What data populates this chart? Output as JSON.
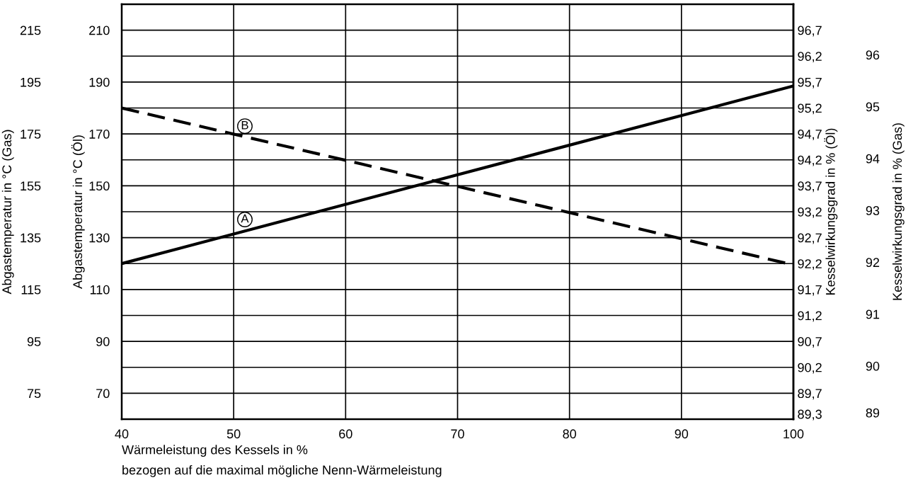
{
  "chart_data": {
    "type": "line",
    "xlabel": "Wärmeleistung des Kessels in %\nbezogen auf die maximal mögliche Nenn-Wärmeleistung",
    "ylabel": "Abgastemperatur in °C (Öl)",
    "y3label": "Abgastemperatur in °C (Gas)",
    "y2label": "Kesselwirkungsgrad in % (Öl)",
    "x": [
      40,
      100
    ],
    "series": [
      {
        "color": "#000000",
        "line_style": "solid",
        "values": [
          120,
          188.5
        ]
      },
      {
        "color": "#000000",
        "line_style": "dashed",
        "values": [
          180,
          119.5
        ]
      }
    ],
    "annotations": [
      {
        "text": "A",
        "x": 51,
        "y": 137
      },
      {
        "text": "B",
        "x": 51,
        "y": 173
      },
      "89",
      "90",
      "91",
      "92",
      "93",
      "94",
      "95",
      "96",
      "Kesselwirkungsgrad in % (Gas)"
    ],
    "xlim": [
      40,
      100
    ],
    "xticks": [
      40,
      50,
      60,
      70,
      80,
      90,
      100
    ],
    "ylim": [
      60,
      220
    ],
    "yticks": [
      70,
      90,
      110,
      130,
      150,
      170,
      190,
      210
    ],
    "y3lim": [
      65,
      225
    ],
    "y3ticks": [
      75,
      95,
      115,
      135,
      155,
      175,
      195,
      215
    ],
    "y2lim": [
      89.2,
      97.2
    ],
    "y2ticks": [
      {
        "value": 89.3,
        "label": "89,3"
      },
      {
        "value": 89.7,
        "label": "89,7"
      },
      {
        "value": 90.2,
        "label": "90,2"
      },
      {
        "value": 90.7,
        "label": "90,7"
      },
      {
        "value": 91.2,
        "label": "91,2"
      },
      {
        "value": 91.7,
        "label": "91,7"
      },
      {
        "value": 92.2,
        "label": "92,2"
      },
      {
        "value": 92.7,
        "label": "92,7"
      },
      {
        "value": 93.2,
        "label": "93,2"
      },
      {
        "value": 93.7,
        "label": "93,7"
      },
      {
        "value": 94.2,
        "label": "94,2"
      },
      {
        "value": 94.7,
        "label": "94,7"
      },
      {
        "value": 95.2,
        "label": "95,2"
      },
      {
        "value": 95.7,
        "label": "95,7"
      },
      {
        "value": 96.2,
        "label": "96,2"
      },
      {
        "value": 96.7,
        "label": "96,7"
      }
    ],
    "grid": true,
    "marker": "none"
  }
}
